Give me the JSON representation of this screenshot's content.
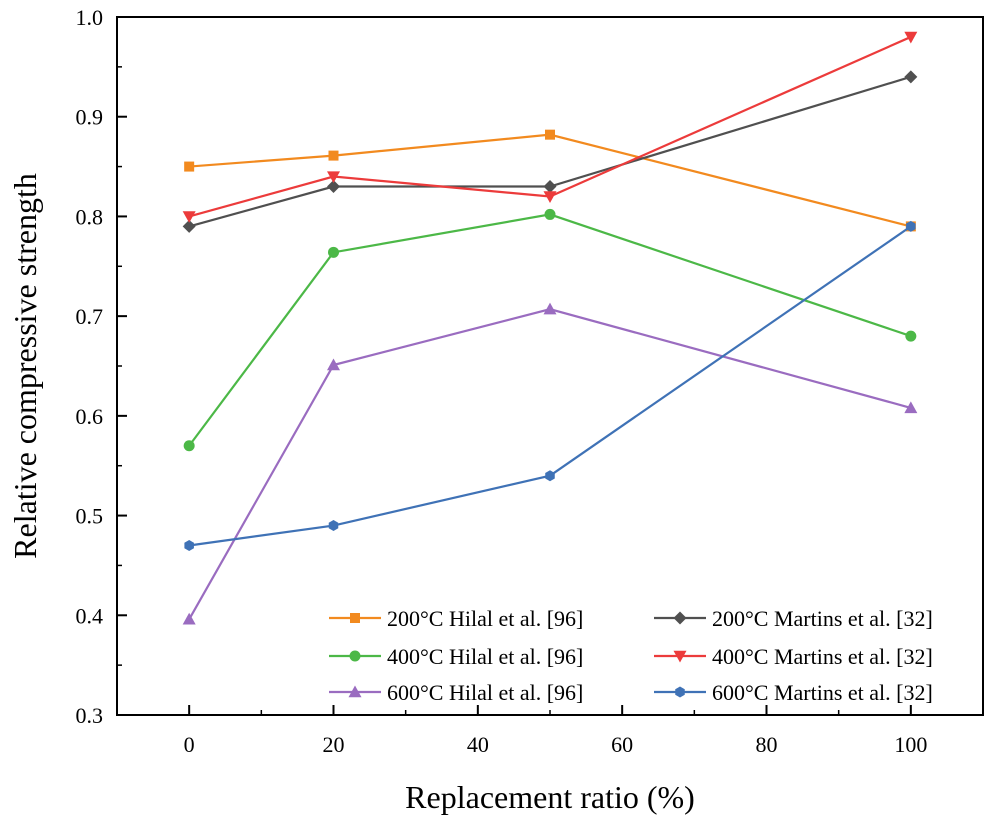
{
  "chart_data": {
    "type": "line",
    "xlabel": "Replacement ratio (%)",
    "ylabel": "Relative compressive strength",
    "xlim": [
      -10,
      110
    ],
    "ylim": [
      0.3,
      1.0
    ],
    "xticks": [
      "0",
      "20",
      "40",
      "60",
      "80",
      "100"
    ],
    "yticks": [
      "0.3",
      "0.4",
      "0.5",
      "0.6",
      "0.7",
      "0.8",
      "0.9",
      "1.0"
    ],
    "grid": false,
    "legend_position": "bottom-right",
    "series": [
      {
        "name": "200°C Hilal et al. [96]",
        "color": "#f28a1f",
        "marker": "square",
        "x": [
          0,
          20,
          50,
          100
        ],
        "y": [
          0.85,
          0.861,
          0.882,
          0.79
        ]
      },
      {
        "name": "200°C Martins et al. [32]",
        "color": "#505050",
        "marker": "diamond",
        "x": [
          0,
          20,
          50,
          100
        ],
        "y": [
          0.79,
          0.83,
          0.83,
          0.94
        ]
      },
      {
        "name": "400°C Hilal et al. [96]",
        "color": "#4cb847",
        "marker": "circle",
        "x": [
          0,
          20,
          50,
          100
        ],
        "y": [
          0.57,
          0.764,
          0.802,
          0.68
        ]
      },
      {
        "name": "400°C Martins et al. [32]",
        "color": "#ec3b3b",
        "marker": "triangle-down",
        "x": [
          0,
          20,
          50,
          100
        ],
        "y": [
          0.8,
          0.84,
          0.82,
          0.98
        ]
      },
      {
        "name": "600°C Hilal et al. [96]",
        "color": "#9a6cc0",
        "marker": "triangle-up",
        "x": [
          0,
          20,
          50,
          100
        ],
        "y": [
          0.396,
          0.651,
          0.707,
          0.608
        ]
      },
      {
        "name": "600°C Martins et al. [32]",
        "color": "#3f72b6",
        "marker": "hexagon",
        "x": [
          0,
          20,
          50,
          100
        ],
        "y": [
          0.47,
          0.49,
          0.54,
          0.79
        ]
      }
    ]
  }
}
